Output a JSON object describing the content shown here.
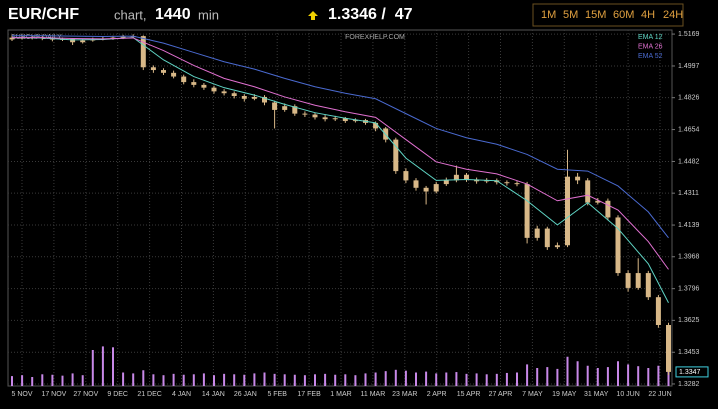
{
  "header": {
    "pair": "EUR/CHF",
    "chart_word": "chart,",
    "interval": "1440",
    "interval_unit": "min",
    "quote": "1.3346 /  47",
    "buttons": [
      "1M",
      "5M",
      "15M",
      "60M",
      "4H",
      "24H"
    ]
  },
  "chart_data": {
    "type": "candlestick",
    "title": "EURCHF DAILY",
    "watermark": "FOREXHELP.COM",
    "candle_color": "#d8b888",
    "volume_color": "#c888e8",
    "ylim": [
      1.3271,
      1.5191
    ],
    "yticks": [
      1.5169,
      1.4997,
      1.4826,
      1.4654,
      1.4482,
      1.4311,
      1.4139,
      1.3968,
      1.3796,
      1.3625,
      1.3453,
      1.3282
    ],
    "grid": true,
    "x_labels": [
      "5 NOV",
      "17 NOV",
      "27 NOV",
      "9 DEC",
      "21 DEC",
      "4 JAN",
      "14 JAN",
      "26 JAN",
      "5 FEB",
      "17 FEB",
      "1 MAR",
      "11 MAR",
      "23 MAR",
      "2 APR",
      "15 APR",
      "27 APR",
      "7 MAY",
      "19 MAY",
      "31 MAY",
      "10 JUN",
      "22 JUN"
    ],
    "candles": [
      [
        1.514,
        1.516,
        1.5132,
        1.515
      ],
      [
        1.515,
        1.5158,
        1.514,
        1.5148
      ],
      [
        1.5148,
        1.5162,
        1.514,
        1.5152
      ],
      [
        1.5152,
        1.516,
        1.5136,
        1.5145
      ],
      [
        1.5145,
        1.5152,
        1.513,
        1.514
      ],
      [
        1.514,
        1.515,
        1.5132,
        1.5143
      ],
      [
        1.5143,
        1.5148,
        1.511,
        1.5125
      ],
      [
        1.5125,
        1.5142,
        1.5118,
        1.5135
      ],
      [
        1.514,
        1.515,
        1.5128,
        1.514
      ],
      [
        1.514,
        1.5155,
        1.5135,
        1.5145
      ],
      [
        1.5145,
        1.516,
        1.5138,
        1.515
      ],
      [
        1.515,
        1.5165,
        1.5142,
        1.5155
      ],
      [
        1.5155,
        1.5168,
        1.5148,
        1.5158
      ],
      [
        1.5158,
        1.5162,
        1.4975,
        1.499
      ],
      [
        1.499,
        1.5,
        1.496,
        1.4975
      ],
      [
        1.4975,
        1.4985,
        1.4948,
        1.496
      ],
      [
        1.496,
        1.4972,
        1.493,
        1.494
      ],
      [
        1.494,
        1.495,
        1.4898,
        1.491
      ],
      [
        1.491,
        1.4925,
        1.4882,
        1.4895
      ],
      [
        1.4895,
        1.4905,
        1.4868,
        1.488
      ],
      [
        1.488,
        1.489,
        1.4848,
        1.486
      ],
      [
        1.486,
        1.4872,
        1.4838,
        1.485
      ],
      [
        1.485,
        1.486,
        1.4822,
        1.4835
      ],
      [
        1.4835,
        1.4845,
        1.4805,
        1.482
      ],
      [
        1.482,
        1.4845,
        1.4812,
        1.483
      ],
      [
        1.483,
        1.484,
        1.4785,
        1.48
      ],
      [
        1.48,
        1.481,
        1.466,
        1.476
      ],
      [
        1.476,
        1.4795,
        1.475,
        1.478
      ],
      [
        1.478,
        1.479,
        1.4728,
        1.474
      ],
      [
        1.474,
        1.4752,
        1.4722,
        1.4735
      ],
      [
        1.4735,
        1.4745,
        1.4708,
        1.472
      ],
      [
        1.472,
        1.4732,
        1.4698,
        1.471
      ],
      [
        1.471,
        1.4728,
        1.47,
        1.4715
      ],
      [
        1.4715,
        1.4722,
        1.469,
        1.47
      ],
      [
        1.47,
        1.4715,
        1.4692,
        1.4705
      ],
      [
        1.4705,
        1.4712,
        1.468,
        1.469
      ],
      [
        1.469,
        1.4698,
        1.4645,
        1.466
      ],
      [
        1.466,
        1.4668,
        1.4585,
        1.46
      ],
      [
        1.46,
        1.461,
        1.4415,
        1.443
      ],
      [
        1.443,
        1.4445,
        1.4365,
        1.438
      ],
      [
        1.438,
        1.4392,
        1.4325,
        1.434
      ],
      [
        1.434,
        1.435,
        1.425,
        1.432
      ],
      [
        1.432,
        1.4372,
        1.431,
        1.436
      ],
      [
        1.436,
        1.4395,
        1.435,
        1.438
      ],
      [
        1.438,
        1.446,
        1.437,
        1.441
      ],
      [
        1.441,
        1.442,
        1.4372,
        1.4385
      ],
      [
        1.4385,
        1.4395,
        1.4362,
        1.4375
      ],
      [
        1.4375,
        1.4392,
        1.4365,
        1.438
      ],
      [
        1.438,
        1.439,
        1.4358,
        1.437
      ],
      [
        1.437,
        1.438,
        1.4352,
        1.4365
      ],
      [
        1.4365,
        1.4375,
        1.4348,
        1.436
      ],
      [
        1.436,
        1.4372,
        1.404,
        1.407
      ],
      [
        1.407,
        1.4135,
        1.4055,
        1.412
      ],
      [
        1.412,
        1.413,
        1.4005,
        1.402
      ],
      [
        1.402,
        1.4045,
        1.401,
        1.403
      ],
      [
        1.403,
        1.4545,
        1.402,
        1.44
      ],
      [
        1.44,
        1.442,
        1.436,
        1.438
      ],
      [
        1.438,
        1.4392,
        1.4245,
        1.426
      ],
      [
        1.426,
        1.4285,
        1.425,
        1.427
      ],
      [
        1.427,
        1.4282,
        1.4165,
        1.418
      ],
      [
        1.418,
        1.4192,
        1.3865,
        1.388
      ],
      [
        1.388,
        1.3895,
        1.378,
        1.38
      ],
      [
        1.38,
        1.396,
        1.379,
        1.388
      ],
      [
        1.388,
        1.3892,
        1.3735,
        1.375
      ],
      [
        1.375,
        1.3762,
        1.3585,
        1.36
      ],
      [
        1.36,
        1.3612,
        1.333,
        1.3347
      ]
    ],
    "volume_lim": [
      0,
      100
    ],
    "volumes": [
      22,
      24,
      20,
      26,
      25,
      23,
      28,
      24,
      80,
      88,
      86,
      30,
      28,
      35,
      26,
      24,
      27,
      25,
      26,
      28,
      24,
      27,
      26,
      25,
      28,
      30,
      27,
      26,
      25,
      24,
      26,
      27,
      25,
      26,
      24,
      28,
      30,
      33,
      36,
      34,
      30,
      32,
      28,
      30,
      31,
      27,
      28,
      26,
      27,
      29,
      30,
      48,
      40,
      42,
      38,
      65,
      55,
      45,
      40,
      42,
      55,
      48,
      44,
      40,
      45,
      42
    ],
    "ema_x": [
      0,
      3,
      6,
      9,
      12,
      15,
      18,
      21,
      24,
      27,
      30,
      33,
      36,
      39,
      42,
      45,
      48,
      51,
      54,
      57,
      60,
      63,
      65
    ],
    "series": [
      {
        "name": "EMA 12",
        "color": "#5fd4c4",
        "values": [
          1.515,
          1.5148,
          1.5138,
          1.514,
          1.515,
          1.503,
          1.494,
          1.488,
          1.484,
          1.479,
          1.4745,
          1.4715,
          1.469,
          1.45,
          1.438,
          1.4385,
          1.4378,
          1.427,
          1.414,
          1.426,
          1.412,
          1.393,
          1.372
        ]
      },
      {
        "name": "EMA 26",
        "color": "#e070d0",
        "values": [
          1.515,
          1.515,
          1.5145,
          1.5143,
          1.5148,
          1.508,
          1.5,
          1.493,
          1.4885,
          1.483,
          1.4785,
          1.475,
          1.472,
          1.46,
          1.448,
          1.444,
          1.4415,
          1.436,
          1.427,
          1.43,
          1.422,
          1.405,
          1.39
        ]
      },
      {
        "name": "EMA 52",
        "color": "#4a6ad0",
        "values": [
          1.516,
          1.516,
          1.5158,
          1.5156,
          1.5158,
          1.512,
          1.507,
          1.502,
          1.498,
          1.493,
          1.4885,
          1.485,
          1.482,
          1.474,
          1.466,
          1.461,
          1.4575,
          1.452,
          1.444,
          1.443,
          1.435,
          1.421,
          1.407
        ]
      }
    ],
    "last_price": 1.3347
  }
}
